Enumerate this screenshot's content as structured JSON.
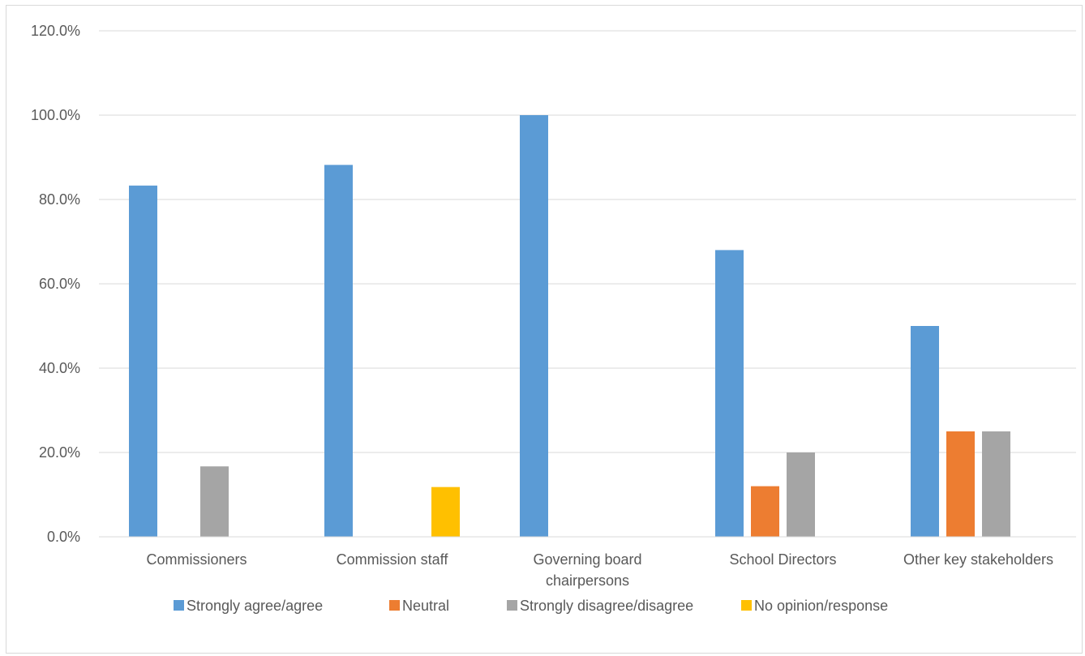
{
  "chart_data": {
    "type": "bar",
    "title": "",
    "xlabel": "",
    "ylabel": "",
    "categories": [
      "Commissioners",
      "Commission staff",
      "Governing board chairpersons",
      "School Directors",
      "Other key stakeholders"
    ],
    "series": [
      {
        "name": "Strongly agree/agree",
        "color": "#5b9bd5",
        "values": [
          83.3,
          88.2,
          100.0,
          68.0,
          50.0
        ]
      },
      {
        "name": "Neutral",
        "color": "#ed7d31",
        "values": [
          0,
          0,
          0,
          12.0,
          25.0
        ]
      },
      {
        "name": "Strongly disagree/disagree",
        "color": "#a5a5a5",
        "values": [
          16.7,
          0,
          0,
          20.0,
          25.0
        ]
      },
      {
        "name": "No opinion/response",
        "color": "#ffc000",
        "values": [
          0,
          11.8,
          0,
          0,
          0
        ]
      }
    ],
    "ylim": [
      0,
      120
    ],
    "yticks": [
      "0.0%",
      "20.0%",
      "40.0%",
      "60.0%",
      "80.0%",
      "100.0%",
      "120.0%"
    ],
    "grid": true,
    "legend_position": "bottom"
  }
}
